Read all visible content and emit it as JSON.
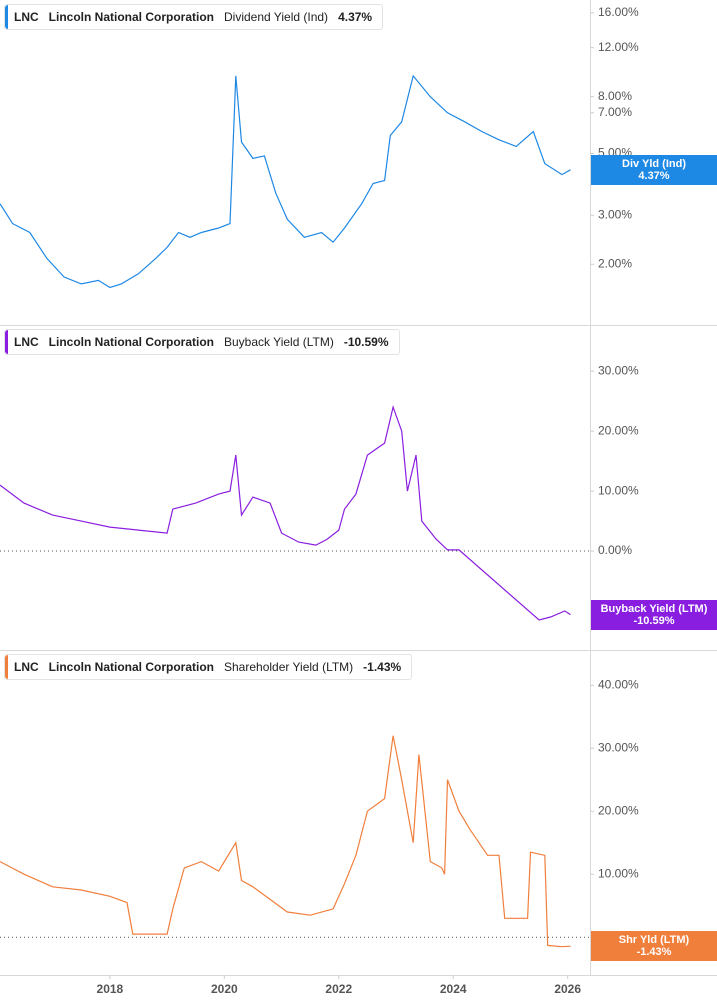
{
  "chart_data": [
    {
      "type": "line",
      "ticker": "LNC",
      "company": "Lincoln National Corporation",
      "metric": "Dividend Yield (Ind)",
      "header_value": "4.37%",
      "badge_label": "Div Yld (Ind)",
      "color": "#1e88e5",
      "log_scale": true,
      "x": [
        2016.08,
        2016.3,
        2016.6,
        2016.9,
        2017.2,
        2017.5,
        2017.8,
        2018.0,
        2018.2,
        2018.5,
        2018.8,
        2019.0,
        2019.2,
        2019.4,
        2019.6,
        2019.9,
        2020.1,
        2020.2,
        2020.3,
        2020.5,
        2020.7,
        2020.9,
        2021.1,
        2021.4,
        2021.7,
        2021.9,
        2022.1,
        2022.4,
        2022.6,
        2022.8,
        2022.9,
        2023.1,
        2023.3,
        2023.6,
        2023.9,
        2024.2,
        2024.5,
        2024.8,
        2025.1,
        2025.4,
        2025.6,
        2025.9,
        2026.05
      ],
      "values": [
        3.3,
        2.8,
        2.6,
        2.1,
        1.8,
        1.7,
        1.75,
        1.65,
        1.7,
        1.85,
        2.1,
        2.3,
        2.6,
        2.5,
        2.6,
        2.7,
        2.8,
        9.5,
        5.5,
        4.8,
        4.9,
        3.6,
        2.9,
        2.5,
        2.6,
        2.4,
        2.7,
        3.3,
        3.9,
        4.0,
        5.8,
        6.5,
        9.5,
        8.0,
        7.0,
        6.5,
        6.0,
        5.6,
        5.3,
        6.0,
        4.6,
        4.2,
        4.37
      ],
      "xlim": [
        2016.08,
        2026.39
      ],
      "ylim": [
        1.21,
        17.8
      ],
      "yticks": [
        {
          "value": 2,
          "label": "2.00%"
        },
        {
          "value": 3,
          "label": "3.00%"
        },
        {
          "value": 5,
          "label": "5.00%"
        },
        {
          "value": 7,
          "label": "7.00%"
        },
        {
          "value": 8,
          "label": "8.00%"
        },
        {
          "value": 12,
          "label": "12.00%"
        },
        {
          "value": 16,
          "label": "16.00%"
        }
      ]
    },
    {
      "type": "line",
      "ticker": "LNC",
      "company": "Lincoln National Corporation",
      "metric": "Buyback Yield (LTM)",
      "header_value": "-10.59%",
      "badge_label": "Buyback Yield (LTM)",
      "color": "#8a1ee0",
      "log_scale": false,
      "zero_line": 0,
      "x": [
        2016.08,
        2016.5,
        2017.0,
        2017.5,
        2018.0,
        2018.5,
        2019.0,
        2019.1,
        2019.5,
        2019.9,
        2020.1,
        2020.2,
        2020.3,
        2020.5,
        2020.8,
        2021.0,
        2021.3,
        2021.6,
        2021.8,
        2022.0,
        2022.1,
        2022.3,
        2022.5,
        2022.8,
        2022.95,
        2023.1,
        2023.2,
        2023.35,
        2023.45,
        2023.7,
        2023.9,
        2024.1,
        2025.5,
        2025.7,
        2025.95,
        2026.05
      ],
      "values": [
        11,
        8,
        6,
        5,
        4,
        3.5,
        3,
        7,
        8,
        9.5,
        10,
        16,
        6,
        9,
        8,
        3,
        1.5,
        1,
        2,
        3.5,
        7,
        9.5,
        16,
        18,
        24,
        20,
        10,
        16,
        5,
        2,
        0.2,
        0.2,
        -11.5,
        -11,
        -10,
        -10.59
      ],
      "xlim": [
        2016.08,
        2026.39
      ],
      "ylim": [
        -16.5,
        37.7
      ],
      "yticks": [
        {
          "value": 0,
          "label": "0.00%"
        },
        {
          "value": 10,
          "label": "10.00%"
        },
        {
          "value": 20,
          "label": "20.00%"
        },
        {
          "value": 30,
          "label": "30.00%"
        }
      ]
    },
    {
      "type": "line",
      "ticker": "LNC",
      "company": "Lincoln National Corporation",
      "metric": "Shareholder Yield (LTM)",
      "header_value": "-1.43%",
      "badge_label": "Shr Yld (LTM)",
      "color": "#f07f3c",
      "log_scale": false,
      "zero_line": 0,
      "x": [
        2016.08,
        2016.5,
        2017.0,
        2017.5,
        2018.0,
        2018.3,
        2018.4,
        2019.0,
        2019.1,
        2019.3,
        2019.6,
        2019.9,
        2020.2,
        2020.3,
        2020.5,
        2020.8,
        2021.1,
        2021.5,
        2021.9,
        2022.1,
        2022.3,
        2022.5,
        2022.8,
        2022.95,
        2023.1,
        2023.3,
        2023.4,
        2023.6,
        2023.8,
        2023.85,
        2023.9,
        2024.1,
        2024.3,
        2024.6,
        2024.8,
        2024.9,
        2025.3,
        2025.35,
        2025.6,
        2025.65,
        2025.9,
        2026.05
      ],
      "values": [
        12,
        10,
        8,
        7.5,
        6.5,
        5.5,
        0.5,
        0.5,
        4.5,
        11,
        12,
        10.5,
        15,
        9,
        8,
        6,
        4,
        3.5,
        4.5,
        8.5,
        13,
        20,
        22,
        32,
        25,
        15,
        29,
        12,
        11,
        10,
        25,
        20,
        17,
        13,
        13,
        3,
        3,
        13.5,
        13,
        -1.3,
        -1.5,
        -1.43
      ],
      "xlim": [
        2016.08,
        2026.39
      ],
      "ylim": [
        -6.0,
        45.6
      ],
      "xticks": [
        2018,
        2020,
        2022,
        2024,
        2026
      ],
      "yticks": [
        {
          "value": 10,
          "label": "10.00%"
        },
        {
          "value": 20,
          "label": "20.00%"
        },
        {
          "value": 30,
          "label": "30.00%"
        },
        {
          "value": 40,
          "label": "40.00%"
        }
      ]
    }
  ]
}
